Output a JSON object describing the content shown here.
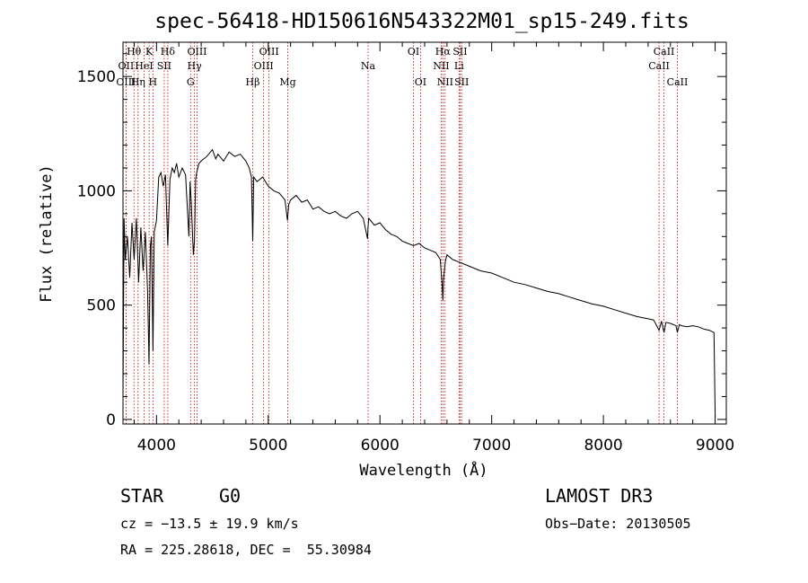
{
  "chart_data": {
    "type": "line",
    "title": "spec-56418-HD150616N543322M01_sp15-249.fits",
    "xlabel": "Wavelength (Å)",
    "ylabel": "Flux (relative)",
    "xlim": [
      3700,
      9100
    ],
    "ylim": [
      -20,
      1650
    ],
    "xticks": [
      4000,
      5000,
      6000,
      7000,
      8000,
      9000
    ],
    "yticks": [
      0,
      500,
      1000,
      1500
    ],
    "series": [
      {
        "name": "flux",
        "x": [
          3700,
          3710,
          3720,
          3740,
          3760,
          3780,
          3800,
          3820,
          3840,
          3860,
          3880,
          3900,
          3920,
          3933,
          3945,
          3955,
          3968,
          3980,
          4000,
          4020,
          4040,
          4060,
          4080,
          4101,
          4120,
          4140,
          4160,
          4180,
          4200,
          4230,
          4260,
          4290,
          4300,
          4310,
          4330,
          4340,
          4350,
          4360,
          4380,
          4400,
          4450,
          4500,
          4530,
          4550,
          4600,
          4650,
          4700,
          4750,
          4800,
          4830,
          4850,
          4861,
          4870,
          4900,
          4950,
          5000,
          5050,
          5100,
          5150,
          5172,
          5183,
          5200,
          5250,
          5300,
          5350,
          5400,
          5450,
          5500,
          5550,
          5600,
          5650,
          5700,
          5750,
          5800,
          5850,
          5889,
          5893,
          5900,
          5950,
          6000,
          6050,
          6100,
          6150,
          6200,
          6250,
          6300,
          6350,
          6400,
          6450,
          6500,
          6540,
          6555,
          6563,
          6570,
          6585,
          6600,
          6650,
          6700,
          6800,
          6900,
          7000,
          7100,
          7200,
          7300,
          7400,
          7500,
          7600,
          7700,
          7800,
          7900,
          8000,
          8100,
          8200,
          8300,
          8400,
          8450,
          8498,
          8520,
          8542,
          8560,
          8600,
          8650,
          8662,
          8680,
          8700,
          8750,
          8800,
          8850,
          8900,
          8950,
          8990,
          9000
        ],
        "values": [
          100,
          880,
          700,
          800,
          620,
          860,
          700,
          880,
          600,
          840,
          650,
          820,
          560,
          240,
          760,
          800,
          300,
          820,
          870,
          1060,
          1080,
          1020,
          1070,
          760,
          1050,
          1100,
          1080,
          1120,
          1060,
          1100,
          1070,
          800,
          1040,
          960,
          720,
          780,
          1050,
          1080,
          1120,
          1130,
          1150,
          1180,
          1140,
          1160,
          1130,
          1170,
          1150,
          1160,
          1130,
          1100,
          1060,
          780,
          1060,
          1040,
          1060,
          1020,
          1000,
          990,
          960,
          870,
          940,
          960,
          980,
          950,
          960,
          920,
          930,
          910,
          900,
          910,
          890,
          880,
          900,
          910,
          880,
          790,
          840,
          880,
          850,
          860,
          830,
          810,
          800,
          780,
          770,
          760,
          770,
          750,
          740,
          730,
          700,
          600,
          520,
          620,
          690,
          720,
          700,
          690,
          670,
          650,
          640,
          620,
          600,
          590,
          575,
          560,
          550,
          535,
          520,
          505,
          495,
          480,
          465,
          450,
          440,
          435,
          390,
          430,
          380,
          425,
          420,
          410,
          380,
          415,
          410,
          405,
          410,
          405,
          395,
          390,
          380,
          10
        ]
      }
    ],
    "lines": [
      {
        "name": "Hθ",
        "x": 3798,
        "row": 0
      },
      {
        "name": "OII",
        "x": 3727,
        "row": 1
      },
      {
        "name": "OIII",
        "x": 3727,
        "row": 2
      },
      {
        "name": "Hη",
        "x": 3835,
        "row": 2
      },
      {
        "name": "HeI",
        "x": 3889,
        "row": 1
      },
      {
        "name": "K",
        "x": 3934,
        "row": 0
      },
      {
        "name": "SII",
        "x": 4069,
        "row": 1
      },
      {
        "name": "H",
        "x": 3968,
        "row": 2
      },
      {
        "name": "Hδ",
        "x": 4101,
        "row": 0
      },
      {
        "name": "OIII",
        "x": 4363,
        "row": 0
      },
      {
        "name": "Hγ",
        "x": 4340,
        "row": 1
      },
      {
        "name": "G",
        "x": 4305,
        "row": 2
      },
      {
        "name": "Hβ",
        "x": 4861,
        "row": 2
      },
      {
        "name": "OIII",
        "x": 5007,
        "row": 0
      },
      {
        "name": "OIII",
        "x": 4959,
        "row": 1
      },
      {
        "name": "Mg",
        "x": 5175,
        "row": 2
      },
      {
        "name": "Na",
        "x": 5894,
        "row": 1
      },
      {
        "name": "OI",
        "x": 6300,
        "row": 0
      },
      {
        "name": "OI",
        "x": 6363,
        "row": 2
      },
      {
        "name": "Hα",
        "x": 6563,
        "row": 0
      },
      {
        "name": "NII",
        "x": 6548,
        "row": 1
      },
      {
        "name": "NII",
        "x": 6583,
        "row": 2
      },
      {
        "name": "SII",
        "x": 6717,
        "row": 0
      },
      {
        "name": "Li",
        "x": 6708,
        "row": 1
      },
      {
        "name": "SII",
        "x": 6731,
        "row": 2
      },
      {
        "name": "CaII",
        "x": 8542,
        "row": 0
      },
      {
        "name": "CaII",
        "x": 8498,
        "row": 1
      },
      {
        "name": "CaII",
        "x": 8662,
        "row": 2
      }
    ]
  },
  "info": {
    "object_class": "STAR",
    "subclass": "G0",
    "cz": "cz = −13.5 ± 19.9 km/s",
    "coords": "RA = 225.28618, DEC =  55.30984",
    "survey": "LAMOST DR3",
    "obs_date": "Obs−Date: 20130505"
  },
  "colors": {
    "line": "#000000",
    "marker": "#c00000"
  }
}
